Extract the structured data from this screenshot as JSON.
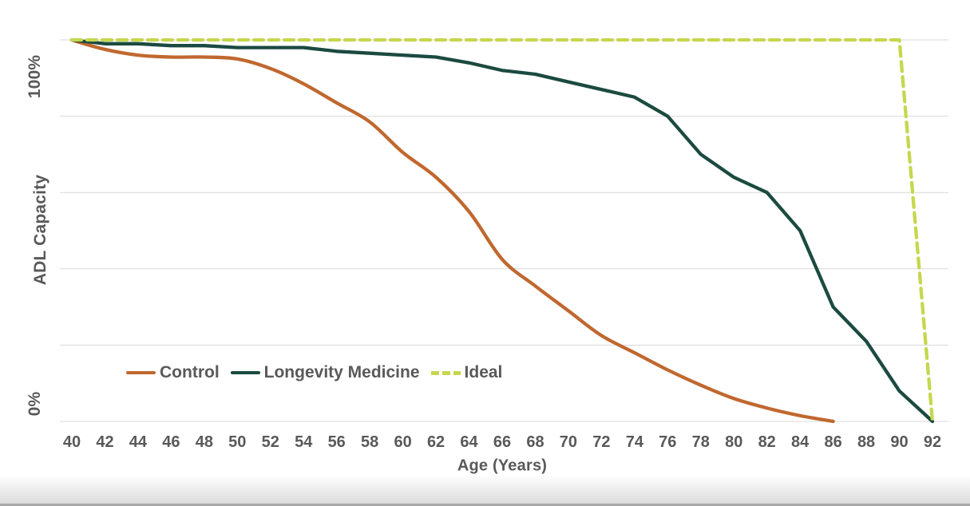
{
  "chart_data": {
    "type": "line",
    "title": "",
    "xlabel": "Age (Years)",
    "ylabel": "ADL Capacity",
    "y_tick_labels": [
      "100%",
      "0%"
    ],
    "x_ticks": [
      40,
      42,
      44,
      46,
      48,
      50,
      52,
      54,
      56,
      58,
      60,
      62,
      64,
      66,
      68,
      70,
      72,
      74,
      76,
      78,
      80,
      82,
      84,
      86,
      88,
      90,
      92
    ],
    "xlim": [
      40,
      92
    ],
    "ylim": [
      0,
      100
    ],
    "grid": "horizontal-only",
    "gridline_values": [
      0,
      20,
      40,
      60,
      80,
      100
    ],
    "legend_position": "inside-bottom-left",
    "series": [
      {
        "name": "Control",
        "color": "#C0682F",
        "style": "solid",
        "smooth": true,
        "points": [
          [
            40,
            100
          ],
          [
            42,
            97.5
          ],
          [
            44,
            96
          ],
          [
            46,
            95.5
          ],
          [
            48,
            95.5
          ],
          [
            50,
            95
          ],
          [
            52,
            92.5
          ],
          [
            54,
            88.5
          ],
          [
            56,
            83.5
          ],
          [
            58,
            78.5
          ],
          [
            60,
            70.5
          ],
          [
            62,
            64
          ],
          [
            64,
            55
          ],
          [
            66,
            42.5
          ],
          [
            68,
            35.5
          ],
          [
            70,
            29
          ],
          [
            72,
            22.5
          ],
          [
            74,
            18
          ],
          [
            76,
            13.5
          ],
          [
            78,
            9.5
          ],
          [
            80,
            6
          ],
          [
            82,
            3.5
          ],
          [
            84,
            1.5
          ],
          [
            86,
            0
          ]
        ]
      },
      {
        "name": "Longevity Medicine",
        "color": "#1B4A40",
        "style": "solid",
        "smooth": false,
        "points": [
          [
            40,
            100
          ],
          [
            42,
            99
          ],
          [
            44,
            99
          ],
          [
            46,
            98.5
          ],
          [
            48,
            98.5
          ],
          [
            50,
            98
          ],
          [
            52,
            98
          ],
          [
            54,
            98
          ],
          [
            56,
            97
          ],
          [
            58,
            96.5
          ],
          [
            60,
            96
          ],
          [
            62,
            95.5
          ],
          [
            64,
            94
          ],
          [
            66,
            92
          ],
          [
            68,
            91
          ],
          [
            70,
            89
          ],
          [
            72,
            87
          ],
          [
            74,
            85
          ],
          [
            76,
            80
          ],
          [
            78,
            70
          ],
          [
            80,
            64
          ],
          [
            82,
            60
          ],
          [
            84,
            50
          ],
          [
            86,
            30
          ],
          [
            88,
            21
          ],
          [
            90,
            8
          ],
          [
            92,
            0
          ]
        ]
      },
      {
        "name": "Ideal",
        "color": "#C6D74E",
        "style": "dashed",
        "smooth": false,
        "points": [
          [
            40,
            100
          ],
          [
            90,
            100
          ],
          [
            92,
            0
          ]
        ]
      }
    ]
  },
  "colors": {
    "gridline": "#D9D9D9",
    "axis_text": "#595959",
    "background": "#FFFFFF",
    "bottom_edge_line": "#A8A8A8"
  }
}
